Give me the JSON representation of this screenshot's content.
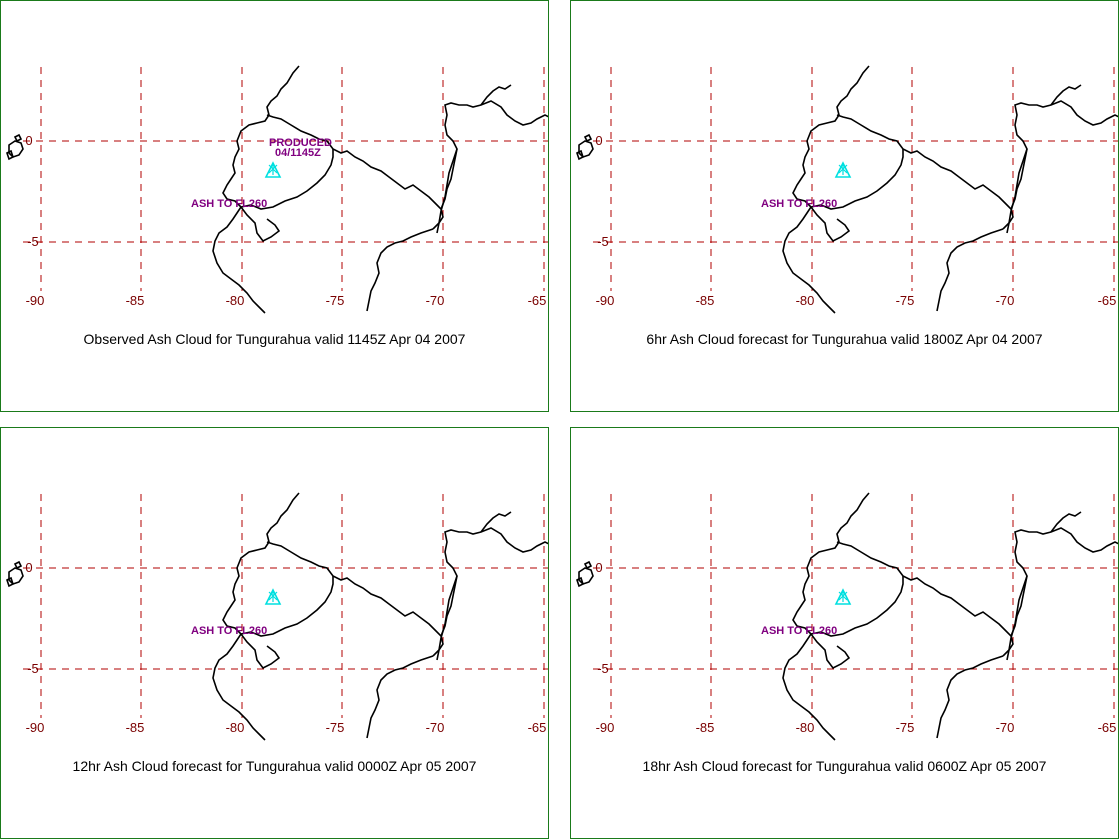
{
  "panels": [
    {
      "caption": "Observed Ash Cloud for Tungurahua valid 1145Z Apr 04 2007",
      "ash_label": "ASH TO FL260",
      "produced_label": "PRODUCED",
      "produced_time": "04/1145Z",
      "marker": "triangle"
    },
    {
      "caption": "6hr Ash Cloud forecast for Tungurahua valid 1800Z Apr 04 2007",
      "ash_label": "ASH TO FL260",
      "marker": "triangle"
    },
    {
      "caption": "12hr Ash Cloud forecast for Tungurahua valid 0000Z Apr 05 2007",
      "ash_label": "ASH TO FL260",
      "marker": "triangle"
    },
    {
      "caption": "18hr Ash Cloud forecast for Tungurahua valid 0600Z Apr 05 2007",
      "ash_label": "ASH TO FL260",
      "marker": "triangle"
    }
  ],
  "axes": {
    "longitude_ticks": [
      "-90",
      "-85",
      "-80",
      "-75",
      "-70",
      "-65"
    ],
    "latitude_ticks": [
      "0",
      "-5"
    ]
  },
  "colors": {
    "border": "#1a7a1a",
    "grid": "#b00000",
    "tick_text": "#7a0000",
    "label": "#800080",
    "volcano_marker": "#00e0e0",
    "coastline": "#000000"
  }
}
